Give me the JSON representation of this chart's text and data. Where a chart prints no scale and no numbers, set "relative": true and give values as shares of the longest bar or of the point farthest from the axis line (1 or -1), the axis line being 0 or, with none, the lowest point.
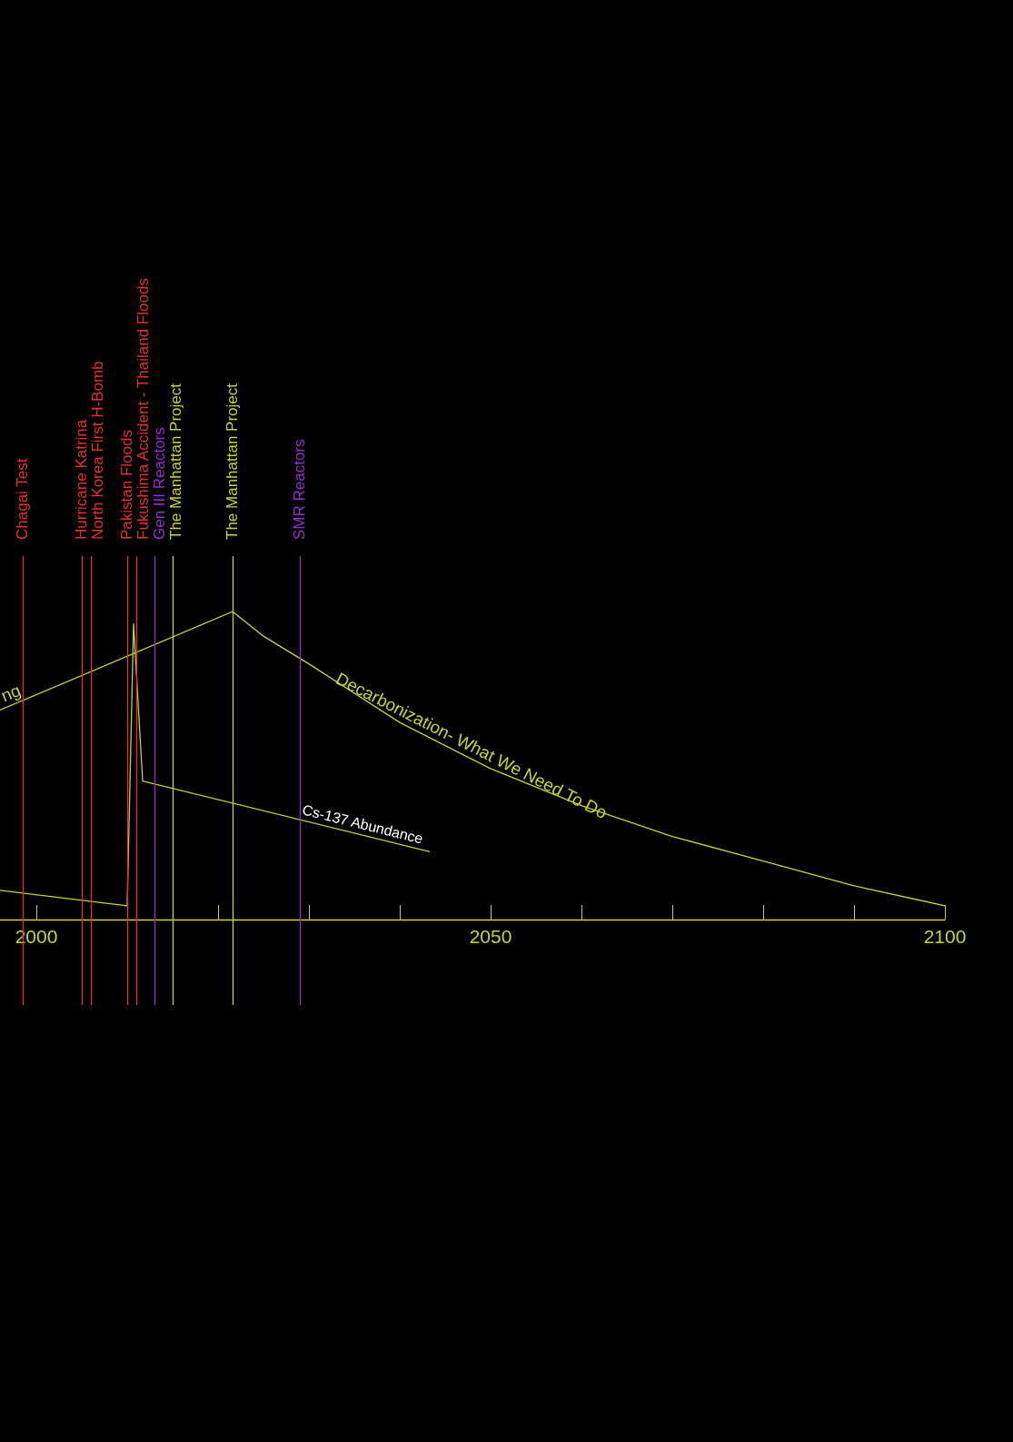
{
  "chart_data": {
    "type": "line",
    "relative": true,
    "tick_labels": "x",
    "marker": "none",
    "xlim": [
      1996,
      2100
    ],
    "xticks": [
      2000,
      {
        "value": 2010,
        "label": null
      },
      {
        "value": 2020,
        "label": null
      },
      {
        "value": 2030,
        "label": null
      },
      {
        "value": 2040,
        "label": null
      },
      2050,
      {
        "value": 2060,
        "label": null
      },
      {
        "value": 2070,
        "label": null
      },
      {
        "value": 2080,
        "label": null
      },
      {
        "value": 2090,
        "label": null
      },
      2100
    ],
    "series": [
      {
        "name": "ng",
        "color": "#c9d13a",
        "x": [
          1996,
          2021.6
        ],
        "values": [
          0.68,
          1
        ]
      },
      {
        "name": "Decarbonization- What We Need To Do",
        "color": "#c9d13a",
        "x": [
          2021.6,
          2025,
          2030,
          2040,
          2050,
          2060,
          2070,
          2080,
          2090,
          2100
        ],
        "values": [
          1,
          0.92,
          0.83,
          0.64,
          0.49,
          0.37,
          0.27,
          0.19,
          0.11,
          0.045
        ]
      },
      {
        "name": "Cs-137 Abundance",
        "color": "#c9d13a",
        "x": [
          1996,
          2010,
          2010.7,
          2011.7,
          2043.3
        ],
        "values": [
          0.095,
          0.045,
          0.96,
          0.45,
          0.22
        ]
      }
    ],
    "ref_lines": [
      {
        "axis": "x",
        "value": 1998.5,
        "label": "Chagai Test",
        "color": "#e8302a"
      },
      {
        "axis": "x",
        "value": 2005,
        "label": "Hurricane Katrina",
        "color": "#e8302a"
      },
      {
        "axis": "x",
        "value": 2006,
        "label": "North Korea First H-Bomb",
        "color": "#e8302a"
      },
      {
        "axis": "x",
        "value": 2010,
        "label": "Pakistan Floods",
        "color": "#e8302a"
      },
      {
        "axis": "x",
        "value": 2011,
        "label": "Fukushima Accident - Thailand Floods",
        "color": "#e8302a"
      },
      {
        "axis": "x",
        "value": 2013,
        "label": "Gen III Reactors",
        "color": "#9a2bd0"
      },
      {
        "axis": "x",
        "value": 2015,
        "label": "The Manhattan Project",
        "color": "#c9d13a"
      },
      {
        "axis": "x",
        "value": 2021.6,
        "label": "The Manhattan Project",
        "color": "#c9d13a"
      },
      {
        "axis": "x",
        "value": 2029,
        "label": "SMR Reactors",
        "color": "#9a2bd0"
      }
    ]
  }
}
